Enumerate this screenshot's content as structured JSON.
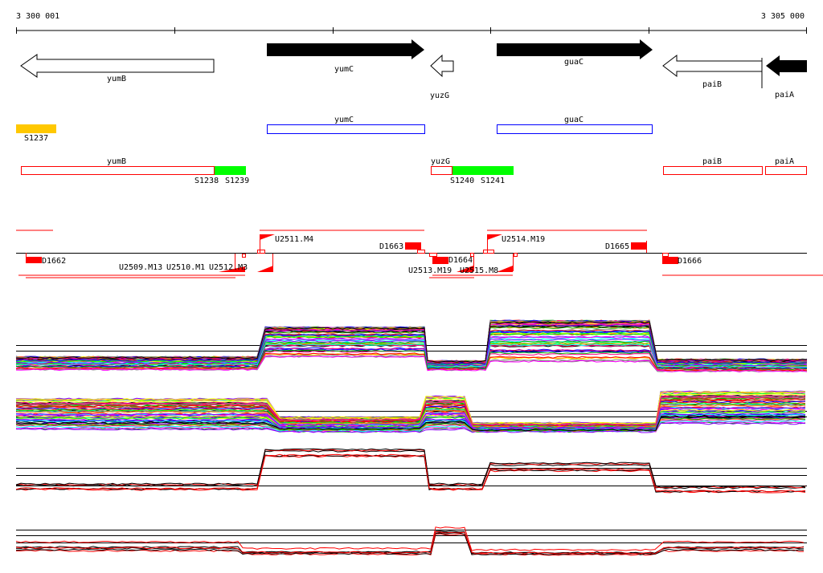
{
  "ruler": {
    "start_label": "3 300 001",
    "end_label": "3 305 000"
  },
  "genes": [
    {
      "name": "yumB",
      "strand": "-",
      "style": "outline"
    },
    {
      "name": "yumC",
      "strand": "+",
      "style": "filled"
    },
    {
      "name": "yuzG",
      "strand": "-",
      "style": "outline"
    },
    {
      "name": "guaC",
      "strand": "+",
      "style": "filled"
    },
    {
      "name": "paiB",
      "strand": "-",
      "style": "outline"
    },
    {
      "name": "paiA",
      "strand": "-",
      "style": "filled"
    }
  ],
  "segments": {
    "s1237": "S1237",
    "yumC": "yumC",
    "guaC": "guaC"
  },
  "transcripts": {
    "yumB": "yumB",
    "s1238": "S1238",
    "s1239": "S1239",
    "yuzG": "yuzG",
    "s1240": "S1240",
    "s1241": "S1241",
    "paiB": "paiB",
    "paiA": "paiA"
  },
  "features": {
    "d1662": "D1662",
    "d1663": "D1663",
    "d1664": "D1664",
    "d1665": "D1665",
    "d1666": "D1666",
    "u2509": "U2509.M13",
    "u2510": "U2510.M1",
    "u2512": "U2512.M3",
    "u2511": "U2511.M4",
    "u2513": "U2513.M19",
    "u2514": "U2514.M19",
    "u2515": "U2515.M8"
  },
  "colors": {
    "filled": "#000000",
    "segment_orange": "#ffc800",
    "segment_blue": "#0000ff",
    "transcript_red": "#ff0000",
    "green": "#00ff00"
  }
}
